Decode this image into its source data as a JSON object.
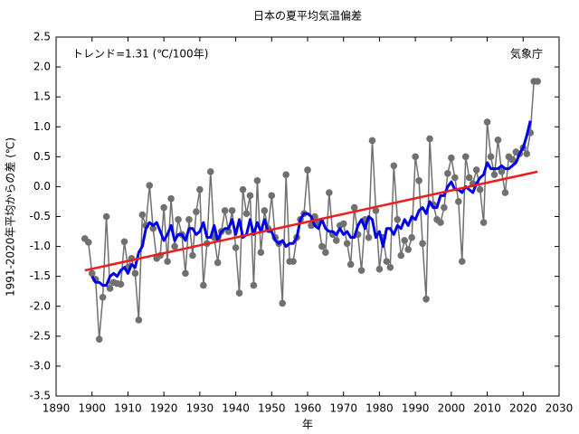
{
  "chart_data": {
    "type": "line",
    "title": "日本の夏平均気温偏差",
    "annotations": [
      "トレンド=1.31 (℃/100年)",
      "気象庁"
    ],
    "xlabel": "年",
    "ylabel": "1991-2020年平均からの差 (℃)",
    "xlim": [
      1890,
      2030
    ],
    "ylim": [
      -3.5,
      2.5
    ],
    "xticks": [
      1890,
      1900,
      1910,
      1920,
      1930,
      1940,
      1950,
      1960,
      1970,
      1980,
      1990,
      2000,
      2010,
      2020,
      2030
    ],
    "yticks": [
      2.5,
      {
        "value": 2,
        "label": "2.0"
      },
      1.5,
      {
        "value": 1,
        "label": "1.0"
      },
      0.5,
      {
        "value": 0,
        "label": "0.0"
      },
      -0.5,
      {
        "value": -1,
        "label": "-1.0"
      },
      -1.5,
      {
        "value": -2,
        "label": "-2.0"
      },
      -2.5,
      {
        "value": -3,
        "label": "-3.0"
      },
      -3.5
    ],
    "grid": false,
    "series": [
      {
        "color": "#707070",
        "markers": true,
        "x": [
          1898,
          1899,
          1900,
          1901,
          1902,
          1903,
          1904,
          1905,
          1906,
          1907,
          1908,
          1909,
          1910,
          1911,
          1912,
          1913,
          1914,
          1915,
          1916,
          1917,
          1918,
          1919,
          1920,
          1921,
          1922,
          1923,
          1924,
          1925,
          1926,
          1927,
          1928,
          1929,
          1930,
          1931,
          1932,
          1933,
          1934,
          1935,
          1936,
          1937,
          1938,
          1939,
          1940,
          1941,
          1942,
          1943,
          1944,
          1945,
          1946,
          1947,
          1948,
          1949,
          1950,
          1951,
          1952,
          1953,
          1954,
          1955,
          1956,
          1957,
          1958,
          1959,
          1960,
          1961,
          1962,
          1963,
          1964,
          1965,
          1966,
          1967,
          1968,
          1969,
          1970,
          1971,
          1972,
          1973,
          1974,
          1975,
          1976,
          1977,
          1978,
          1979,
          1980,
          1981,
          1982,
          1983,
          1984,
          1985,
          1986,
          1987,
          1988,
          1989,
          1990,
          1991,
          1992,
          1993,
          1994,
          1995,
          1996,
          1997,
          1998,
          1999,
          2000,
          2001,
          2002,
          2003,
          2004,
          2005,
          2006,
          2007,
          2008,
          2009,
          2010,
          2011,
          2012,
          2013,
          2014,
          2015,
          2016,
          2017,
          2018,
          2019,
          2020,
          2021,
          2022,
          2023,
          2024
        ],
        "values": [
          -0.87,
          -0.93,
          -1.45,
          -1.55,
          -2.55,
          -1.85,
          -0.5,
          -1.7,
          -1.6,
          -1.62,
          -1.63,
          -0.92,
          -1.35,
          -1.2,
          -1.45,
          -2.23,
          -0.47,
          -0.65,
          0.02,
          -0.7,
          -1.2,
          -1.15,
          -0.35,
          -1.25,
          -0.2,
          -1.0,
          -0.55,
          -0.8,
          -1.45,
          -0.55,
          -1.15,
          -0.42,
          -0.05,
          -1.65,
          -0.95,
          0.25,
          -0.85,
          -1.27,
          -0.75,
          -0.4,
          -0.75,
          -0.4,
          -1.02,
          -1.78,
          -0.05,
          -0.45,
          -0.15,
          -1.65,
          0.1,
          -1.1,
          -0.4,
          -0.7,
          -0.15,
          -0.85,
          -0.95,
          -1.95,
          0.2,
          -1.25,
          -1.25,
          -0.85,
          -0.55,
          -0.45,
          0.28,
          -0.65,
          -0.5,
          -0.6,
          -1.0,
          -1.1,
          -0.1,
          -0.8,
          -0.9,
          -0.65,
          -0.62,
          -0.95,
          -1.3,
          -0.35,
          -0.8,
          -1.4,
          -0.55,
          -0.85,
          0.77,
          -0.4,
          -1.38,
          -0.85,
          -1.25,
          -1.35,
          0.35,
          -0.55,
          -1.15,
          -0.9,
          -1.05,
          -0.85,
          0.5,
          0.1,
          -0.95,
          -1.88,
          0.8,
          -0.3,
          -0.55,
          -0.6,
          -0.35,
          0.22,
          0.48,
          0.15,
          -0.25,
          -1.25,
          0.5,
          0.15,
          0.05,
          0.28,
          -0.05,
          -0.6,
          1.08,
          0.5,
          0.2,
          0.78,
          0.25,
          -0.1,
          0.5,
          0.45,
          0.58,
          0.55,
          0.65,
          0.55,
          0.9,
          1.76,
          1.76
        ]
      },
      {
        "color": "#0000ee",
        "markers": false,
        "width": 3,
        "x": [
          1900,
          1901,
          1902,
          1903,
          1904,
          1905,
          1906,
          1907,
          1908,
          1909,
          1910,
          1911,
          1912,
          1913,
          1914,
          1915,
          1916,
          1917,
          1918,
          1919,
          1920,
          1921,
          1922,
          1923,
          1924,
          1925,
          1926,
          1927,
          1928,
          1929,
          1930,
          1931,
          1932,
          1933,
          1934,
          1935,
          1936,
          1937,
          1938,
          1939,
          1940,
          1941,
          1942,
          1943,
          1944,
          1945,
          1946,
          1947,
          1948,
          1949,
          1950,
          1951,
          1952,
          1953,
          1954,
          1955,
          1956,
          1957,
          1958,
          1959,
          1960,
          1961,
          1962,
          1963,
          1964,
          1965,
          1966,
          1967,
          1968,
          1969,
          1970,
          1971,
          1972,
          1973,
          1974,
          1975,
          1976,
          1977,
          1978,
          1979,
          1980,
          1981,
          1982,
          1983,
          1984,
          1985,
          1986,
          1987,
          1988,
          1989,
          1990,
          1991,
          1992,
          1993,
          1994,
          1995,
          1996,
          1997,
          1998,
          1999,
          2000,
          2001,
          2002,
          2003,
          2004,
          2005,
          2006,
          2007,
          2008,
          2009,
          2010,
          2011,
          2012,
          2013,
          2014,
          2015,
          2016,
          2017,
          2018,
          2019,
          2020,
          2021,
          2022
        ],
        "values": [
          -1.5,
          -1.6,
          -1.6,
          -1.65,
          -1.65,
          -1.5,
          -1.45,
          -1.5,
          -1.4,
          -1.35,
          -1.45,
          -1.3,
          -1.35,
          -1.1,
          -1.0,
          -0.7,
          -0.6,
          -0.65,
          -0.6,
          -0.75,
          -0.9,
          -0.8,
          -0.65,
          -0.9,
          -0.8,
          -0.8,
          -0.9,
          -0.7,
          -0.7,
          -0.8,
          -0.75,
          -0.6,
          -0.85,
          -0.85,
          -0.65,
          -0.9,
          -0.75,
          -0.7,
          -0.7,
          -0.55,
          -0.8,
          -0.55,
          -0.85,
          -0.8,
          -0.55,
          -0.8,
          -0.6,
          -0.75,
          -0.55,
          -0.75,
          -0.75,
          -0.9,
          -0.95,
          -0.9,
          -1.0,
          -0.95,
          -0.95,
          -0.85,
          -0.55,
          -0.45,
          -0.45,
          -0.5,
          -0.65,
          -0.7,
          -0.55,
          -0.7,
          -0.75,
          -0.75,
          -0.8,
          -0.7,
          -0.8,
          -0.75,
          -0.85,
          -0.85,
          -0.65,
          -0.55,
          -0.7,
          -0.5,
          -0.55,
          -0.85,
          -0.75,
          -1.0,
          -0.7,
          -0.7,
          -0.8,
          -0.65,
          -0.7,
          -0.55,
          -0.65,
          -0.5,
          -0.55,
          -0.4,
          -0.35,
          -0.45,
          -0.25,
          -0.35,
          -0.35,
          -0.15,
          -0.15,
          0.0,
          0.08,
          -0.05,
          -0.05,
          -0.1,
          0.0,
          -0.05,
          -0.1,
          0.05,
          0.15,
          0.2,
          0.4,
          0.3,
          0.3,
          0.3,
          0.35,
          0.3,
          0.3,
          0.35,
          0.4,
          0.55,
          0.65,
          0.85,
          1.1
        ]
      },
      {
        "color": "#ee1c1c",
        "markers": false,
        "width": 2.5,
        "x": [
          1898,
          2024
        ],
        "values": [
          -1.4,
          0.25
        ]
      }
    ]
  }
}
